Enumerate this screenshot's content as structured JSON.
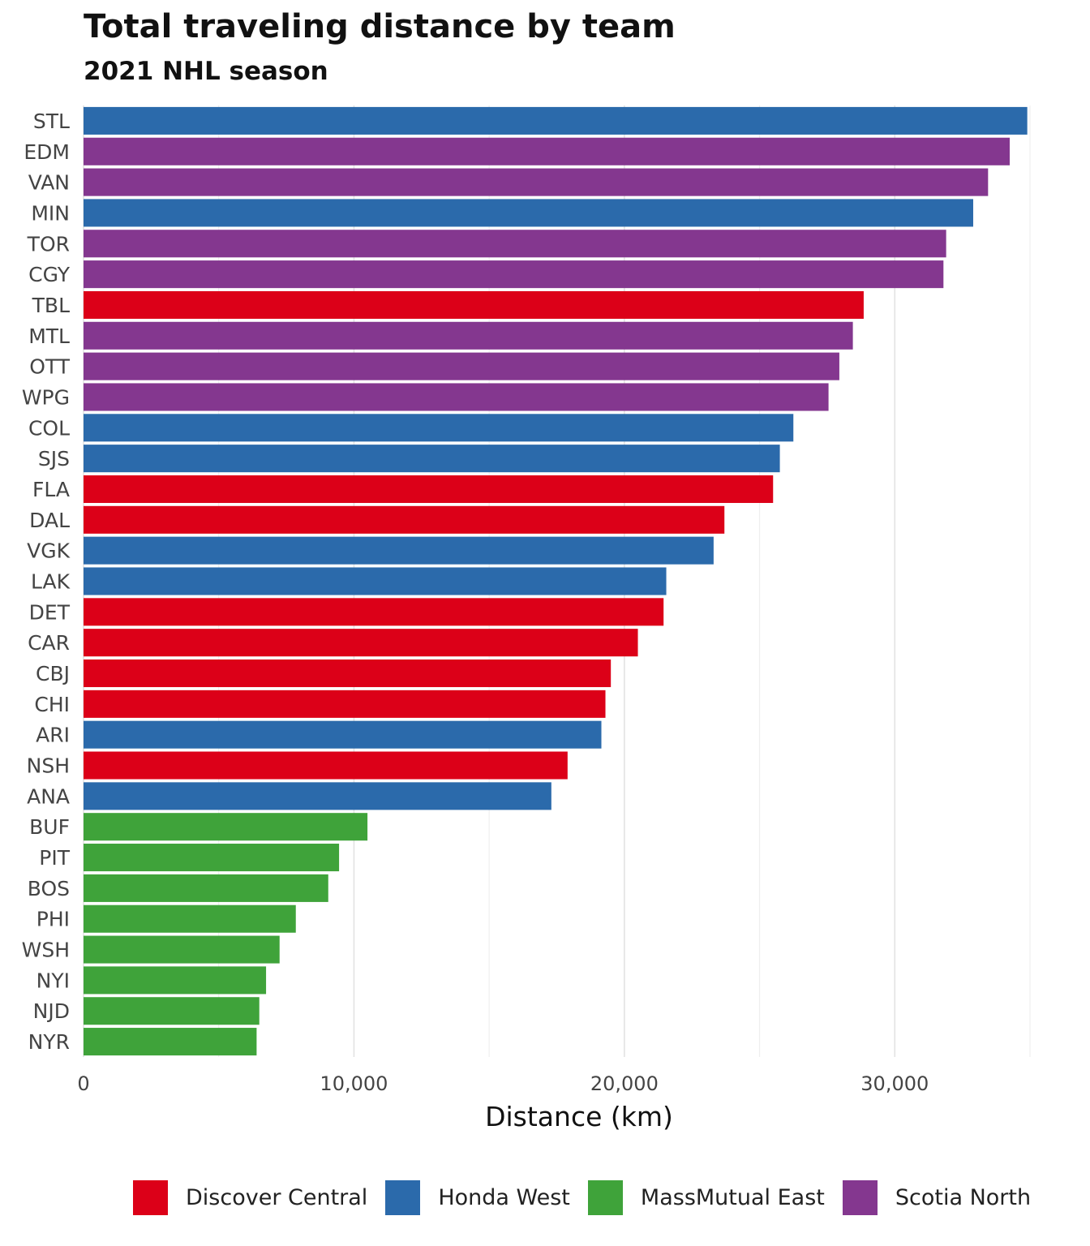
{
  "chart_data": {
    "type": "bar",
    "orientation": "horizontal",
    "title": "Total traveling distance by team",
    "subtitle": "2021 NHL season",
    "xlabel": "Distance (km)",
    "ylabel": "",
    "xlim": [
      0,
      35000
    ],
    "x_ticks": [
      0,
      10000,
      20000,
      30000
    ],
    "x_tick_labels": [
      "0",
      "10,000",
      "20,000",
      "30,000"
    ],
    "grid": true,
    "legend_position": "bottom",
    "divisions": [
      {
        "name": "Discover Central",
        "color": "#dc0018"
      },
      {
        "name": "Honda West",
        "color": "#2b6aab"
      },
      {
        "name": "MassMutual East",
        "color": "#3fa33a"
      },
      {
        "name": "Scotia North",
        "color": "#84378f"
      }
    ],
    "bars": [
      {
        "team": "STL",
        "value": 34900,
        "division": "Honda West"
      },
      {
        "team": "EDM",
        "value": 34250,
        "division": "Scotia North"
      },
      {
        "team": "VAN",
        "value": 33450,
        "division": "Scotia North"
      },
      {
        "team": "MIN",
        "value": 32900,
        "division": "Honda West"
      },
      {
        "team": "TOR",
        "value": 31900,
        "division": "Scotia North"
      },
      {
        "team": "CGY",
        "value": 31800,
        "division": "Scotia North"
      },
      {
        "team": "TBL",
        "value": 28850,
        "division": "Discover Central"
      },
      {
        "team": "MTL",
        "value": 28450,
        "division": "Scotia North"
      },
      {
        "team": "OTT",
        "value": 27950,
        "division": "Scotia North"
      },
      {
        "team": "WPG",
        "value": 27550,
        "division": "Scotia North"
      },
      {
        "team": "COL",
        "value": 26250,
        "division": "Honda West"
      },
      {
        "team": "SJS",
        "value": 25750,
        "division": "Honda West"
      },
      {
        "team": "FLA",
        "value": 25500,
        "division": "Discover Central"
      },
      {
        "team": "DAL",
        "value": 23700,
        "division": "Discover Central"
      },
      {
        "team": "VGK",
        "value": 23300,
        "division": "Honda West"
      },
      {
        "team": "LAK",
        "value": 21550,
        "division": "Honda West"
      },
      {
        "team": "DET",
        "value": 21450,
        "division": "Discover Central"
      },
      {
        "team": "CAR",
        "value": 20500,
        "division": "Discover Central"
      },
      {
        "team": "CBJ",
        "value": 19500,
        "division": "Discover Central"
      },
      {
        "team": "CHI",
        "value": 19300,
        "division": "Discover Central"
      },
      {
        "team": "ARI",
        "value": 19150,
        "division": "Honda West"
      },
      {
        "team": "NSH",
        "value": 17900,
        "division": "Discover Central"
      },
      {
        "team": "ANA",
        "value": 17300,
        "division": "Honda West"
      },
      {
        "team": "BUF",
        "value": 10500,
        "division": "MassMutual East"
      },
      {
        "team": "PIT",
        "value": 9450,
        "division": "MassMutual East"
      },
      {
        "team": "BOS",
        "value": 9050,
        "division": "MassMutual East"
      },
      {
        "team": "PHI",
        "value": 7850,
        "division": "MassMutual East"
      },
      {
        "team": "WSH",
        "value": 7250,
        "division": "MassMutual East"
      },
      {
        "team": "NYI",
        "value": 6750,
        "division": "MassMutual East"
      },
      {
        "team": "NJD",
        "value": 6500,
        "division": "MassMutual East"
      },
      {
        "team": "NYR",
        "value": 6400,
        "division": "MassMutual East"
      }
    ]
  }
}
